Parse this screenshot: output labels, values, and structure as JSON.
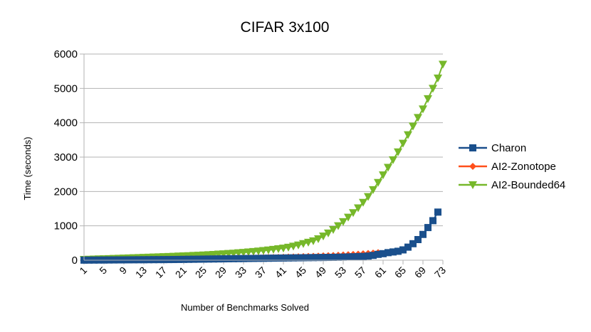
{
  "chart_data": {
    "type": "line",
    "title": "CIFAR 3x100",
    "xlabel": "Number of Benchmarks Solved",
    "ylabel": "Time (seconds)",
    "ylim": [
      0,
      6000
    ],
    "yticks": [
      0,
      1000,
      2000,
      3000,
      4000,
      5000,
      6000
    ],
    "xlim": [
      1,
      73
    ],
    "xticks": [
      1,
      5,
      9,
      13,
      17,
      21,
      25,
      29,
      33,
      37,
      41,
      45,
      49,
      53,
      57,
      61,
      65,
      69,
      73
    ],
    "grid": "horizontal",
    "legend_position": "right",
    "series": [
      {
        "name": "Charon",
        "color": "#1a4f8c",
        "marker": "square",
        "values": [
          2,
          3,
          4,
          5,
          6,
          7,
          8,
          9,
          10,
          11,
          12,
          13,
          14,
          15,
          16,
          17,
          18,
          19,
          20,
          22,
          24,
          26,
          28,
          30,
          32,
          34,
          36,
          38,
          40,
          42,
          44,
          46,
          48,
          50,
          52,
          54,
          56,
          58,
          60,
          62,
          64,
          66,
          68,
          70,
          72,
          74,
          76,
          78,
          80,
          82,
          84,
          87,
          90,
          95,
          100,
          105,
          110,
          120,
          140,
          170,
          190,
          220,
          240,
          260,
          300,
          380,
          480,
          600,
          750,
          950,
          1150,
          1400
        ]
      },
      {
        "name": "AI2-Zonotope",
        "color": "#ff4f1a",
        "marker": "diamond",
        "values": [
          5,
          6,
          7,
          8,
          9,
          10,
          11,
          12,
          13,
          14,
          15,
          17,
          19,
          21,
          23,
          25,
          27,
          29,
          31,
          33,
          35,
          37,
          39,
          41,
          43,
          45,
          47,
          49,
          51,
          53,
          56,
          59,
          62,
          65,
          68,
          71,
          74,
          77,
          80,
          84,
          88,
          92,
          96,
          100,
          105,
          110,
          115,
          120,
          126,
          132,
          138,
          145,
          152,
          160,
          168,
          177,
          186,
          196,
          206,
          220
        ]
      },
      {
        "name": "AI2-Bounded64",
        "color": "#76b82a",
        "marker": "triangle-down",
        "values": [
          20,
          25,
          30,
          35,
          40,
          45,
          50,
          55,
          60,
          65,
          70,
          75,
          80,
          85,
          90,
          95,
          100,
          106,
          112,
          118,
          124,
          130,
          136,
          143,
          150,
          158,
          166,
          175,
          184,
          193,
          203,
          214,
          225,
          237,
          250,
          264,
          279,
          295,
          312,
          330,
          350,
          375,
          405,
          440,
          480,
          520,
          560,
          620,
          700,
          790,
          890,
          1000,
          1120,
          1250,
          1380,
          1520,
          1680,
          1850,
          2050,
          2260,
          2480,
          2700,
          2920,
          3150,
          3400,
          3650,
          3900,
          4150,
          4400,
          4700,
          5000,
          5300,
          5700
        ]
      }
    ]
  }
}
